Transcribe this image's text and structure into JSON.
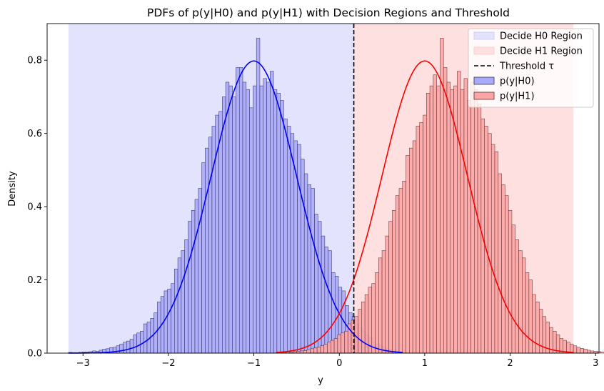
{
  "chart_data": {
    "type": "histogram",
    "title": "PDFs of p(y|H0) and p(y|H1) with Decision Regions and Threshold",
    "xlabel": "y",
    "ylabel": "Density",
    "xlim": [
      -3.42,
      3.04
    ],
    "ylim": [
      0,
      0.9
    ],
    "xticks": [
      -3,
      -2,
      -1,
      0,
      1,
      2,
      3
    ],
    "xtick_labels": [
      "−3",
      "−2",
      "−1",
      "0",
      "1",
      "2",
      "3"
    ],
    "yticks": [
      0,
      0.2,
      0.4,
      0.6,
      0.8
    ],
    "ytick_labels": [
      "0.0",
      "0.2",
      "0.4",
      "0.6",
      "0.8"
    ],
    "grid": false,
    "legend_position": "top-right",
    "threshold": 0.17,
    "regions": [
      {
        "name": "Decide H0 Region",
        "x_start": -3.17,
        "x_end": 0.17,
        "color": "#e3e3fd"
      },
      {
        "name": "Decide H1 Region",
        "x_start": 0.17,
        "x_end": 2.74,
        "color": "#ffe0e0"
      }
    ],
    "series": [
      {
        "name": "p(y|H0)",
        "color": "#0000ff",
        "fill": "#aaaafb",
        "bin_start": -3.17,
        "bin_width": 0.04,
        "densities": [
          0.002,
          0.001,
          0.001,
          0.002,
          0.003,
          0.003,
          0.004,
          0.006,
          0.005,
          0.008,
          0.011,
          0.012,
          0.015,
          0.016,
          0.02,
          0.025,
          0.03,
          0.033,
          0.038,
          0.05,
          0.055,
          0.06,
          0.08,
          0.085,
          0.095,
          0.11,
          0.14,
          0.155,
          0.17,
          0.175,
          0.19,
          0.23,
          0.26,
          0.28,
          0.31,
          0.36,
          0.39,
          0.42,
          0.45,
          0.52,
          0.56,
          0.59,
          0.62,
          0.65,
          0.66,
          0.7,
          0.74,
          0.73,
          0.7,
          0.78,
          0.78,
          0.74,
          0.72,
          0.67,
          0.73,
          0.86,
          0.73,
          0.75,
          0.74,
          0.77,
          0.72,
          0.71,
          0.69,
          0.64,
          0.62,
          0.6,
          0.58,
          0.57,
          0.53,
          0.49,
          0.46,
          0.45,
          0.38,
          0.36,
          0.32,
          0.29,
          0.28,
          0.22,
          0.21,
          0.18,
          0.17,
          0.13,
          0.11,
          0.1,
          0.08,
          0.07,
          0.06,
          0.05,
          0.043,
          0.03,
          0.025,
          0.022,
          0.017,
          0.012,
          0.01,
          0.008,
          0.005,
          0.003,
          0.002,
          0.001
        ]
      },
      {
        "name": "p(y|H1)",
        "color": "#ff0000",
        "fill": "#fea6a6",
        "bin_start": -0.74,
        "bin_width": 0.04,
        "densities": [
          0.001,
          0.001,
          0.002,
          0.003,
          0.003,
          0.004,
          0.005,
          0.006,
          0.007,
          0.009,
          0.012,
          0.014,
          0.016,
          0.02,
          0.024,
          0.03,
          0.035,
          0.04,
          0.05,
          0.055,
          0.06,
          0.08,
          0.09,
          0.1,
          0.12,
          0.14,
          0.16,
          0.18,
          0.19,
          0.22,
          0.26,
          0.28,
          0.32,
          0.36,
          0.39,
          0.43,
          0.45,
          0.47,
          0.54,
          0.56,
          0.58,
          0.62,
          0.63,
          0.65,
          0.71,
          0.73,
          0.76,
          0.73,
          0.86,
          0.78,
          0.74,
          0.72,
          0.73,
          0.77,
          0.72,
          0.75,
          0.69,
          0.74,
          0.72,
          0.68,
          0.64,
          0.62,
          0.6,
          0.57,
          0.55,
          0.49,
          0.46,
          0.43,
          0.39,
          0.35,
          0.31,
          0.28,
          0.26,
          0.22,
          0.2,
          0.16,
          0.14,
          0.12,
          0.1,
          0.085,
          0.07,
          0.06,
          0.05,
          0.04,
          0.035,
          0.03,
          0.025,
          0.02,
          0.016,
          0.013,
          0.011,
          0.008,
          0.006,
          0.005,
          0.004,
          0.003,
          0.002,
          0.002,
          0.001,
          0.001
        ]
      }
    ],
    "kde": [
      {
        "name": "p(y|H0) KDE",
        "color": "#0000ff",
        "mean": -1.0,
        "std": 0.5,
        "x_range": [
          -3.17,
          0.74
        ]
      },
      {
        "name": "p(y|H1) KDE",
        "color": "#ff0000",
        "mean": 1.0,
        "std": 0.5,
        "x_range": [
          -0.74,
          2.74
        ]
      }
    ],
    "legend": [
      {
        "label": "Decide H0 Region",
        "kind": "patch",
        "fill": "#e3e3fd",
        "stroke": "#c8c8fa"
      },
      {
        "label": "Decide H1 Region",
        "kind": "patch",
        "fill": "#ffe0e0",
        "stroke": "#fcc8c8"
      },
      {
        "label": "Threshold τ",
        "kind": "dashed-line",
        "stroke": "#000000"
      },
      {
        "label": "p(y|H0)",
        "kind": "patch",
        "fill": "#aaaafb",
        "stroke": "#333355"
      },
      {
        "label": "p(y|H1)",
        "kind": "patch",
        "fill": "#fea6a6",
        "stroke": "#553333"
      }
    ]
  }
}
